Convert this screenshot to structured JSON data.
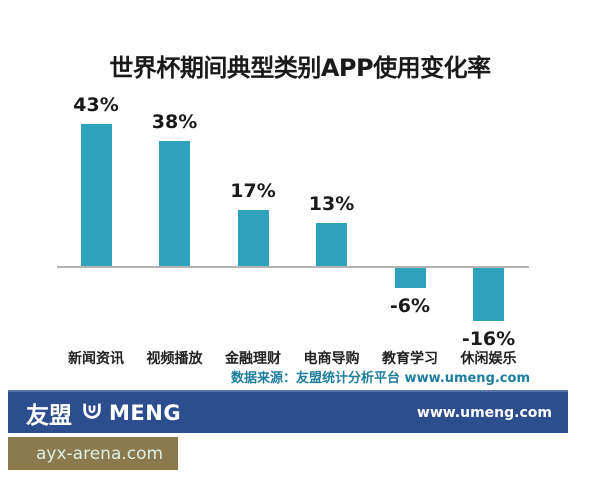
{
  "chart_data": {
    "type": "bar",
    "title": "世界杯期间典型类别APP使用变化率",
    "categories": [
      "新闻资讯",
      "视频播放",
      "金融理财",
      "电商导购",
      "教育学习",
      "休闲娱乐"
    ],
    "values": [
      43,
      38,
      17,
      13,
      -6,
      -16
    ],
    "value_labels": [
      "43%",
      "38%",
      "17%",
      "13%",
      "-6%",
      "-16%"
    ],
    "unit": "%",
    "ylim": [
      -20,
      47
    ],
    "grid": false,
    "legend": false,
    "bar_color": "#2fa3bd",
    "baseline_color": "#b3b3b3"
  },
  "source_note": "数据来源：友盟统计分析平台 www.umeng.com",
  "footer": {
    "logo_text_cn": "友盟",
    "logo_text_en": "MENG",
    "url": "www.umeng.com",
    "bg_color": "#2d4e8e"
  },
  "watermark": {
    "text": "ayx-arena.com",
    "bg_color": "#8a7a4e"
  }
}
